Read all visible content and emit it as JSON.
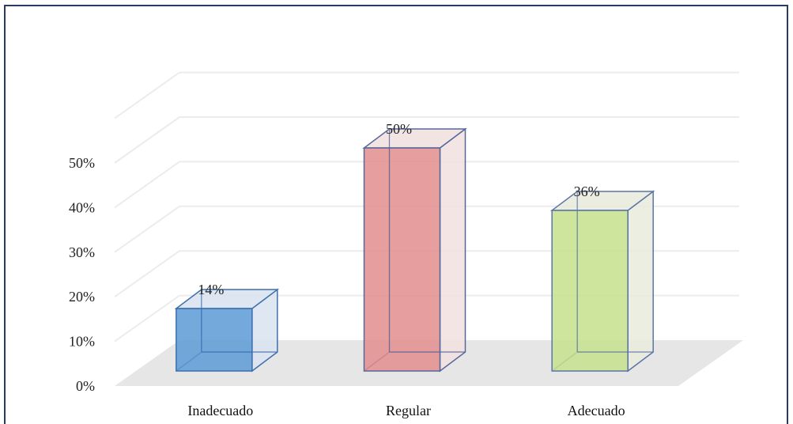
{
  "chart_data": {
    "type": "bar",
    "style": "3d-column",
    "categories": [
      "Inadecuado",
      "Regular",
      "Adecuado"
    ],
    "values": [
      14,
      50,
      36
    ],
    "data_labels": [
      "14%",
      "50%",
      "36%"
    ],
    "colors": [
      "#5b9bd5",
      "#e28d8d",
      "#c5e08c"
    ],
    "side_colors": [
      "#d9e3f0",
      "#f2e1e1",
      "#e8ebdc"
    ],
    "edge_colors": [
      "#3e6fae",
      "#56689a",
      "#5a74a8"
    ],
    "ylim": [
      0,
      50
    ],
    "y_ticks": [
      0,
      10,
      20,
      30,
      40,
      50
    ],
    "y_tick_labels": [
      "0%",
      "10%",
      "20%",
      "30%",
      "40%",
      "50%"
    ],
    "grid": true,
    "legend": "none",
    "title": "",
    "xlabel": "",
    "ylabel": ""
  }
}
